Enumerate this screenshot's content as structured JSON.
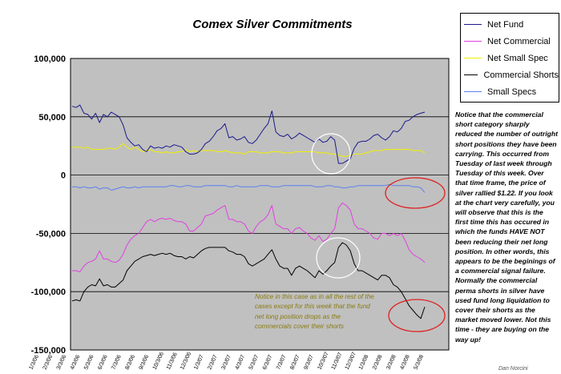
{
  "chart_data": {
    "type": "line",
    "title": "Comex Silver Commitments",
    "ylim": [
      -150000,
      100000
    ],
    "yticks": [
      100000,
      50000,
      0,
      -50000,
      -100000,
      -150000
    ],
    "ytick_labels": [
      "100,000",
      "50,000",
      "0",
      "-50,000",
      "-100,000",
      "-150,000"
    ],
    "xtick_labels": [
      "1/3/06",
      "2/3/06",
      "3/3/06",
      "4/3/06",
      "5/3/06",
      "6/3/06",
      "7/3/06",
      "8/3/06",
      "9/3/06",
      "10/3/06",
      "11/3/06",
      "12/3/06",
      "1/3/07",
      "2/3/07",
      "3/3/07",
      "4/3/07",
      "5/3/07",
      "6/3/07",
      "7/3/07",
      "8/3/07",
      "9/3/07",
      "10/3/07",
      "11/3/07",
      "12/3/07",
      "1/3/08",
      "2/3/08",
      "3/3/08",
      "4/3/08",
      "5/3/08"
    ],
    "grid": "horizontal",
    "background": "#c0c0c0",
    "legend_position": "top-right",
    "series": [
      {
        "name": "Net Fund",
        "color": "#1a1a8c",
        "values": [
          59000,
          58000,
          60000,
          53000,
          52000,
          48000,
          53000,
          45000,
          52000,
          50000,
          54000,
          52000,
          50000,
          43000,
          32000,
          28000,
          25000,
          26000,
          22000,
          20000,
          25000,
          23000,
          24000,
          23000,
          25000,
          24000,
          26000,
          25000,
          24000,
          20000,
          18000,
          18000,
          19000,
          22000,
          27000,
          29000,
          33000,
          38000,
          40000,
          44000,
          32000,
          33000,
          30000,
          31000,
          33000,
          28000,
          27000,
          30000,
          35000,
          40000,
          44000,
          55000,
          37000,
          34000,
          33000,
          35000,
          31000,
          33000,
          36000,
          34000,
          32000,
          30000,
          28000,
          31000,
          28000,
          29000,
          33000,
          30000,
          10000,
          10000,
          12000,
          14000,
          23000,
          28000,
          29000,
          29000,
          31000,
          34000,
          35000,
          32000,
          30000,
          33000,
          38000,
          37000,
          40000,
          46000,
          47000,
          50000,
          52000,
          53000,
          54000
        ]
      },
      {
        "name": "Net Commercial",
        "color": "#e040e0",
        "values": [
          -82000,
          -82000,
          -83000,
          -78000,
          -75000,
          -74000,
          -72000,
          -65000,
          -72000,
          -72000,
          -74000,
          -75000,
          -73000,
          -68000,
          -60000,
          -55000,
          -52000,
          -50000,
          -45000,
          -40000,
          -38000,
          -40000,
          -38000,
          -37000,
          -38000,
          -37000,
          -39000,
          -40000,
          -40000,
          -42000,
          -48000,
          -48000,
          -45000,
          -42000,
          -35000,
          -34000,
          -33000,
          -30000,
          -28000,
          -26000,
          -38000,
          -38000,
          -40000,
          -40000,
          -42000,
          -48000,
          -50000,
          -44000,
          -40000,
          -38000,
          -34000,
          -26000,
          -42000,
          -44000,
          -46000,
          -46000,
          -50000,
          -46000,
          -45000,
          -48000,
          -50000,
          -54000,
          -56000,
          -52000,
          -57000,
          -55000,
          -50000,
          -46000,
          -28000,
          -24000,
          -26000,
          -30000,
          -42000,
          -46000,
          -46000,
          -48000,
          -50000,
          -54000,
          -55000,
          -50000,
          -50000,
          -52000,
          -50000,
          -52000,
          -50000,
          -56000,
          -64000,
          -68000,
          -70000,
          -72000,
          -75000
        ]
      },
      {
        "name": "Net Small Spec",
        "color": "#f0f000",
        "values": [
          24000,
          24000,
          24000,
          23000,
          24000,
          22000,
          22000,
          22000,
          22000,
          23000,
          23000,
          22000,
          24000,
          27000,
          24000,
          22000,
          24000,
          22000,
          20000,
          21000,
          22000,
          20000,
          20000,
          19000,
          20000,
          19000,
          19000,
          20000,
          20000,
          22000,
          20000,
          21000,
          20000,
          21000,
          21000,
          21000,
          21000,
          20000,
          20000,
          21000,
          20000,
          19000,
          19000,
          19000,
          18000,
          20000,
          20000,
          20000,
          19000,
          19000,
          19000,
          20000,
          20000,
          20000,
          19000,
          19000,
          19000,
          20000,
          20000,
          20000,
          20000,
          20000,
          20000,
          19000,
          19000,
          19000,
          18000,
          18000,
          17000,
          16000,
          16000,
          17000,
          18000,
          18000,
          18000,
          19000,
          20000,
          21000,
          21000,
          21000,
          22000,
          22000,
          22000,
          22000,
          22000,
          22000,
          22000,
          21000,
          21000,
          21000,
          19000
        ]
      },
      {
        "name": "Commercial Shorts",
        "color": "#000000",
        "values": [
          -108000,
          -107000,
          -108000,
          -100000,
          -96000,
          -94000,
          -95000,
          -89000,
          -95000,
          -94000,
          -96000,
          -96000,
          -93000,
          -90000,
          -82000,
          -78000,
          -74000,
          -72000,
          -70000,
          -69000,
          -68000,
          -69000,
          -68000,
          -67000,
          -68000,
          -67000,
          -69000,
          -70000,
          -70000,
          -72000,
          -70000,
          -71000,
          -68000,
          -65000,
          -63000,
          -62000,
          -62000,
          -62000,
          -62000,
          -62000,
          -65000,
          -66000,
          -68000,
          -68000,
          -70000,
          -76000,
          -78000,
          -76000,
          -74000,
          -72000,
          -68000,
          -64000,
          -72000,
          -78000,
          -80000,
          -80000,
          -86000,
          -80000,
          -78000,
          -80000,
          -82000,
          -85000,
          -88000,
          -82000,
          -85000,
          -82000,
          -78000,
          -75000,
          -62000,
          -58000,
          -60000,
          -65000,
          -76000,
          -82000,
          -82000,
          -84000,
          -86000,
          -88000,
          -90000,
          -86000,
          -86000,
          -88000,
          -94000,
          -96000,
          -100000,
          -106000,
          -112000,
          -116000,
          -120000,
          -123000,
          -113000
        ]
      },
      {
        "name": "Small Specs",
        "color": "#5a7ef0",
        "values": [
          -10000,
          -10000,
          -11000,
          -10000,
          -11000,
          -11000,
          -10000,
          -12000,
          -11000,
          -11000,
          -13000,
          -12000,
          -11000,
          -10000,
          -11000,
          -11000,
          -10000,
          -11000,
          -10000,
          -10000,
          -10000,
          -10000,
          -10000,
          -10000,
          -10000,
          -9000,
          -9000,
          -10000,
          -10000,
          -9000,
          -9000,
          -10000,
          -10000,
          -10000,
          -9000,
          -9000,
          -9000,
          -9000,
          -9000,
          -9000,
          -10000,
          -10000,
          -9000,
          -10000,
          -10000,
          -10000,
          -10000,
          -10000,
          -9000,
          -9000,
          -9000,
          -10000,
          -10000,
          -10000,
          -9000,
          -9000,
          -9000,
          -9000,
          -9000,
          -9000,
          -9000,
          -9000,
          -10000,
          -10000,
          -10000,
          -9000,
          -9000,
          -10000,
          -10000,
          -11000,
          -11000,
          -10000,
          -10000,
          -9000,
          -9000,
          -9000,
          -9000,
          -9000,
          -9000,
          -9000,
          -9000,
          -8000,
          -9000,
          -9000,
          -9000,
          -9000,
          -9000,
          -10000,
          -10000,
          -11000,
          -15000
        ]
      }
    ]
  },
  "annotation_right": "Notice that the commercial short category sharply reduced the number of outright short positions they have been carrying. This occurred from Tuesday of last week through Tuesday of this week. Over that time frame, the price of silver rallied $1.22. If you look at the chart very carefully, you will observe that this is the first time this has occured in which the funds HAVE NOT been reducing their net long position. In other words, this appears to be the beginings of a commercial signal failure. Normally the commercial perma shorts in silver have used fund long liquidation to cover their shorts as the market moved lower. Not this time - they are buying on the way up!",
  "annotation_inner": "Notice in this case as in all the rest of the cases except for this week that the fund net long position drops as the commercials cover their shorts",
  "footer": "Dan Norcini"
}
